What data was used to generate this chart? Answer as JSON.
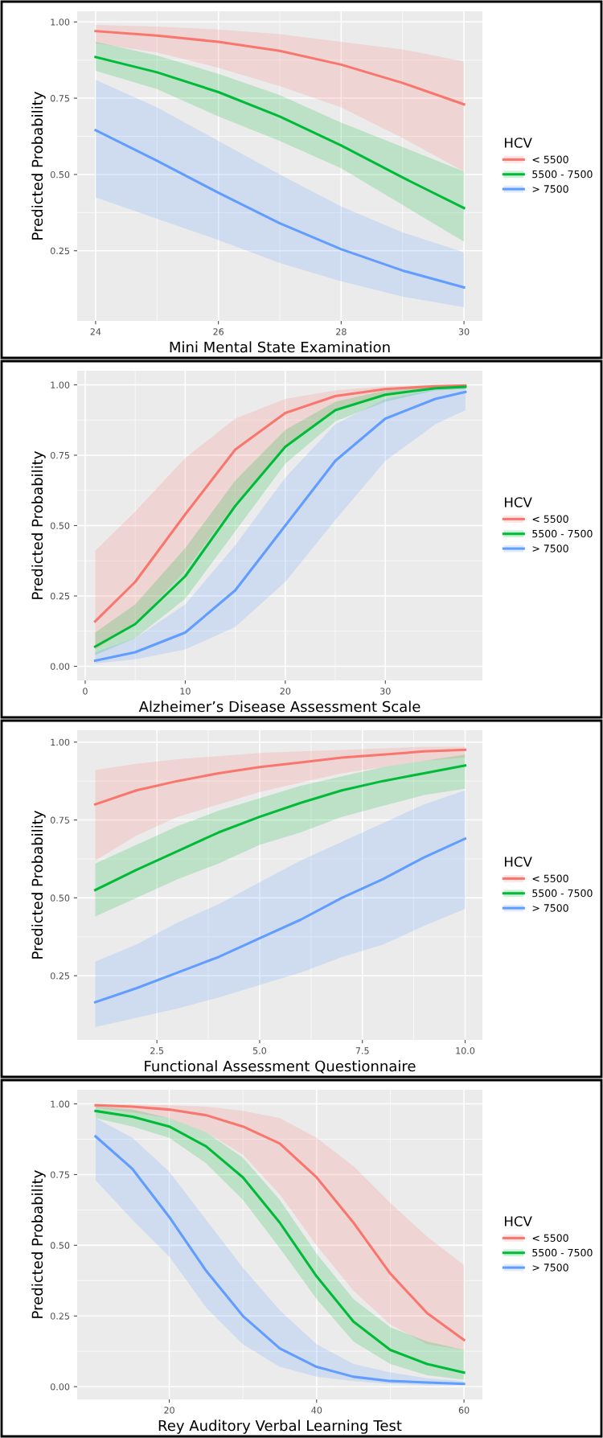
{
  "chart_data": [
    {
      "type": "line",
      "xlabel": "Mini Mental State Examination",
      "ylabel": "Predicted Probability",
      "legend_title": "HCV",
      "legend": "right",
      "grid": true,
      "x": [
        24,
        25,
        26,
        27,
        28,
        29,
        30
      ],
      "xlim": [
        23.7,
        30.3
      ],
      "xticks": [
        24,
        26,
        28,
        30
      ],
      "ylim": [
        0.02,
        1.035
      ],
      "yticks": [
        {
          "value": 0.25,
          "label": "0.25"
        },
        {
          "value": 0.5,
          "label": "0.50"
        },
        {
          "value": 0.75,
          "label": "0.75"
        },
        {
          "value": 1.0,
          "label": "1.00"
        }
      ],
      "series": [
        {
          "name": "< 5500",
          "color": "#f8766d",
          "values": [
            0.97,
            0.955,
            0.935,
            0.905,
            0.86,
            0.8,
            0.73
          ],
          "lower": [
            0.93,
            0.9,
            0.85,
            0.79,
            0.72,
            0.62,
            0.51
          ],
          "upper": [
            0.99,
            0.985,
            0.975,
            0.96,
            0.935,
            0.91,
            0.87
          ]
        },
        {
          "name": "5500 - 7500",
          "color": "#00ba38",
          "values": [
            0.885,
            0.835,
            0.77,
            0.69,
            0.595,
            0.49,
            0.39
          ],
          "lower": [
            0.84,
            0.78,
            0.69,
            0.61,
            0.52,
            0.4,
            0.28
          ],
          "upper": [
            0.935,
            0.89,
            0.83,
            0.76,
            0.67,
            0.59,
            0.51
          ]
        },
        {
          "name": "> 7500",
          "color": "#619cff",
          "values": [
            0.645,
            0.545,
            0.44,
            0.34,
            0.255,
            0.185,
            0.13
          ],
          "lower": [
            0.425,
            0.355,
            0.285,
            0.21,
            0.15,
            0.1,
            0.065
          ],
          "upper": [
            0.81,
            0.72,
            0.61,
            0.5,
            0.395,
            0.31,
            0.245
          ]
        }
      ]
    },
    {
      "type": "line",
      "xlabel": "Alzheimer’s Disease Assessment Scale",
      "ylabel": "Predicted Probability",
      "legend_title": "HCV",
      "legend": "right",
      "grid": true,
      "x": [
        1,
        5,
        10,
        15,
        20,
        25,
        30,
        35,
        38
      ],
      "xlim": [
        -0.8,
        39.7
      ],
      "xticks": [
        0,
        10,
        20,
        30
      ],
      "ylim": [
        -0.05,
        1.05
      ],
      "yticks": [
        {
          "value": 0.0,
          "label": "0.00"
        },
        {
          "value": 0.25,
          "label": "0.25"
        },
        {
          "value": 0.5,
          "label": "0.50"
        },
        {
          "value": 0.75,
          "label": "0.75"
        },
        {
          "value": 1.0,
          "label": "1.00"
        }
      ],
      "series": [
        {
          "name": "< 5500",
          "color": "#f8766d",
          "values": [
            0.16,
            0.3,
            0.54,
            0.77,
            0.9,
            0.96,
            0.985,
            0.995,
            0.998
          ],
          "lower": [
            0.06,
            0.15,
            0.34,
            0.58,
            0.78,
            0.91,
            0.96,
            0.985,
            0.99
          ],
          "upper": [
            0.41,
            0.55,
            0.74,
            0.88,
            0.95,
            0.98,
            0.995,
            0.999,
            1.0
          ]
        },
        {
          "name": "5500 - 7500",
          "color": "#00ba38",
          "values": [
            0.07,
            0.15,
            0.32,
            0.57,
            0.78,
            0.91,
            0.965,
            0.988,
            0.993
          ],
          "lower": [
            0.04,
            0.1,
            0.24,
            0.48,
            0.72,
            0.87,
            0.94,
            0.98,
            0.985
          ],
          "upper": [
            0.12,
            0.22,
            0.42,
            0.66,
            0.84,
            0.94,
            0.98,
            0.995,
            0.998
          ]
        },
        {
          "name": "> 7500",
          "color": "#619cff",
          "values": [
            0.02,
            0.05,
            0.12,
            0.27,
            0.5,
            0.73,
            0.88,
            0.95,
            0.975
          ],
          "lower": [
            0.01,
            0.025,
            0.06,
            0.14,
            0.3,
            0.52,
            0.73,
            0.86,
            0.91
          ],
          "upper": [
            0.05,
            0.1,
            0.22,
            0.43,
            0.67,
            0.86,
            0.95,
            0.985,
            0.99
          ]
        }
      ]
    },
    {
      "type": "line",
      "xlabel": "Functional Assessment Questionnaire",
      "ylabel": "Predicted Probability",
      "legend_title": "HCV",
      "legend": "right",
      "grid": true,
      "x": [
        1,
        2,
        3,
        4,
        5,
        6,
        7,
        8,
        9,
        10
      ],
      "xlim": [
        0.56,
        10.42
      ],
      "xticks": [
        2.5,
        {
          "value": 5,
          "label": "5.0"
        },
        7.5,
        {
          "value": 10,
          "label": "10.0"
        }
      ],
      "ylim": [
        0.044,
        1.038
      ],
      "yticks": [
        {
          "value": 0.25,
          "label": "0.25"
        },
        {
          "value": 0.5,
          "label": "0.50"
        },
        {
          "value": 0.75,
          "label": "0.75"
        },
        {
          "value": 1.0,
          "label": "1.00"
        }
      ],
      "series": [
        {
          "name": "< 5500",
          "color": "#f8766d",
          "values": [
            0.8,
            0.845,
            0.875,
            0.9,
            0.92,
            0.935,
            0.95,
            0.96,
            0.97,
            0.975
          ],
          "lower": [
            0.62,
            0.7,
            0.76,
            0.8,
            0.84,
            0.87,
            0.9,
            0.92,
            0.94,
            0.95
          ],
          "upper": [
            0.91,
            0.93,
            0.945,
            0.955,
            0.965,
            0.97,
            0.975,
            0.98,
            0.985,
            0.985
          ]
        },
        {
          "name": "5500 - 7500",
          "color": "#00ba38",
          "values": [
            0.525,
            0.59,
            0.65,
            0.71,
            0.76,
            0.805,
            0.845,
            0.875,
            0.9,
            0.925
          ],
          "lower": [
            0.44,
            0.5,
            0.56,
            0.61,
            0.67,
            0.71,
            0.76,
            0.795,
            0.83,
            0.85
          ],
          "upper": [
            0.61,
            0.67,
            0.73,
            0.78,
            0.82,
            0.86,
            0.89,
            0.92,
            0.94,
            0.96
          ]
        },
        {
          "name": "> 7500",
          "color": "#619cff",
          "values": [
            0.165,
            0.21,
            0.26,
            0.31,
            0.37,
            0.43,
            0.5,
            0.56,
            0.63,
            0.69
          ],
          "lower": [
            0.085,
            0.115,
            0.145,
            0.18,
            0.22,
            0.26,
            0.31,
            0.35,
            0.41,
            0.465
          ],
          "upper": [
            0.295,
            0.35,
            0.42,
            0.48,
            0.55,
            0.62,
            0.68,
            0.74,
            0.8,
            0.845
          ]
        }
      ]
    },
    {
      "type": "line",
      "xlabel": "Rey Auditory Verbal Learning Test",
      "ylabel": "Predicted Probability",
      "legend_title": "HCV",
      "legend": "right",
      "grid": true,
      "x": [
        10,
        15,
        20,
        25,
        30,
        35,
        40,
        45,
        50,
        55,
        60
      ],
      "xlim": [
        7.5,
        62.5
      ],
      "xticks": [
        20,
        40,
        60
      ],
      "ylim": [
        -0.045,
        1.05
      ],
      "yticks": [
        {
          "value": 0.0,
          "label": "0.00"
        },
        {
          "value": 0.25,
          "label": "0.25"
        },
        {
          "value": 0.5,
          "label": "0.50"
        },
        {
          "value": 0.75,
          "label": "0.75"
        },
        {
          "value": 1.0,
          "label": "1.00"
        }
      ],
      "series": [
        {
          "name": "< 5500",
          "color": "#f8766d",
          "values": [
            0.995,
            0.99,
            0.98,
            0.96,
            0.92,
            0.86,
            0.74,
            0.58,
            0.4,
            0.26,
            0.165
          ],
          "lower": [
            0.985,
            0.97,
            0.95,
            0.9,
            0.82,
            0.68,
            0.5,
            0.34,
            0.22,
            0.15,
            0.13
          ],
          "upper": [
            1.0,
            0.998,
            0.995,
            0.99,
            0.975,
            0.95,
            0.88,
            0.78,
            0.65,
            0.53,
            0.43
          ]
        },
        {
          "name": "5500 - 7500",
          "color": "#00ba38",
          "values": [
            0.975,
            0.955,
            0.92,
            0.85,
            0.74,
            0.58,
            0.39,
            0.23,
            0.13,
            0.08,
            0.05
          ],
          "lower": [
            0.95,
            0.92,
            0.88,
            0.79,
            0.66,
            0.49,
            0.31,
            0.16,
            0.08,
            0.04,
            0.025
          ],
          "upper": [
            0.99,
            0.98,
            0.95,
            0.9,
            0.81,
            0.66,
            0.47,
            0.31,
            0.21,
            0.16,
            0.13
          ]
        },
        {
          "name": "> 7500",
          "color": "#619cff",
          "values": [
            0.885,
            0.77,
            0.6,
            0.41,
            0.25,
            0.135,
            0.07,
            0.035,
            0.02,
            0.015,
            0.01
          ],
          "lower": [
            0.73,
            0.59,
            0.46,
            0.28,
            0.15,
            0.07,
            0.035,
            0.02,
            0.01,
            0.005,
            0.005
          ],
          "upper": [
            0.95,
            0.88,
            0.76,
            0.59,
            0.42,
            0.27,
            0.15,
            0.08,
            0.05,
            0.03,
            0.02
          ]
        }
      ]
    }
  ]
}
